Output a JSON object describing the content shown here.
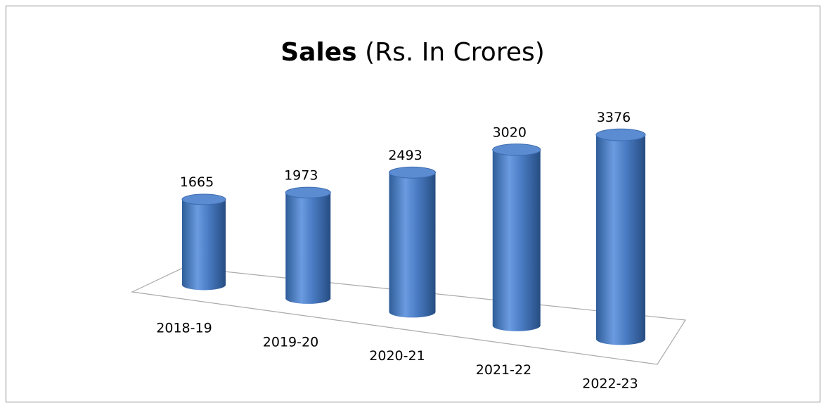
{
  "chart_data": {
    "type": "bar3d",
    "title": "Sales",
    "title_unit": "(Rs. In Crores)",
    "categories": [
      "2018-19",
      "2019-20",
      "2020-21",
      "2021-22",
      "2022-23"
    ],
    "values": [
      1665,
      1973,
      2493,
      3020,
      3376
    ],
    "color": "#4f81bd"
  }
}
